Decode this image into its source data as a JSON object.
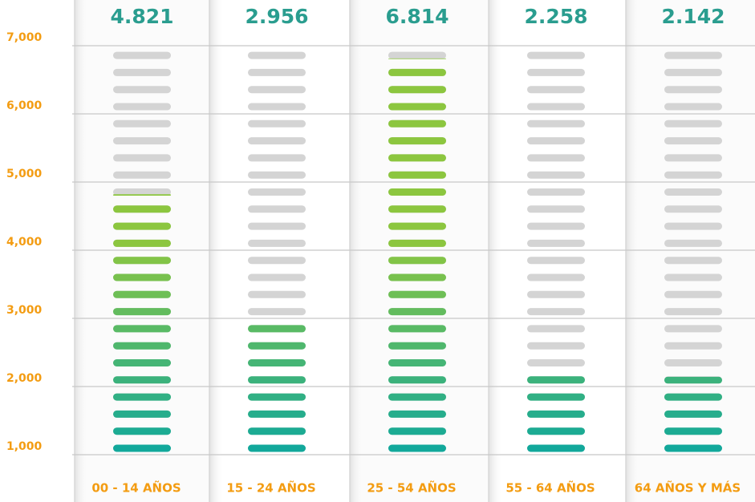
{
  "chart_data": {
    "type": "pictogram-bar",
    "categories": [
      "00 - 14 AÑOS",
      "15 - 24 AÑOS",
      "25 - 54 AÑOS",
      "55 - 64 AÑOS",
      "64 AÑOS Y MÁS"
    ],
    "values": [
      4821,
      2956,
      6814,
      2258,
      2142
    ],
    "value_labels": [
      "4.821",
      "2.956",
      "6.814",
      "2.258",
      "2.142"
    ],
    "ylim": [
      376,
      7106
    ],
    "yticks": [
      {
        "value": 1000,
        "label": "1,000"
      },
      {
        "value": 2000,
        "label": "2,000"
      },
      {
        "value": 3000,
        "label": "3,000"
      },
      {
        "value": 4000,
        "label": "4,000"
      },
      {
        "value": 5000,
        "label": "5,000"
      },
      {
        "value": 6000,
        "label": "6,000"
      },
      {
        "value": 7000,
        "label": "7,000"
      }
    ],
    "grid": true,
    "color": "#8cc63f",
    "base_color": "#12a89b",
    "empty_color": "#d4d4d4"
  }
}
